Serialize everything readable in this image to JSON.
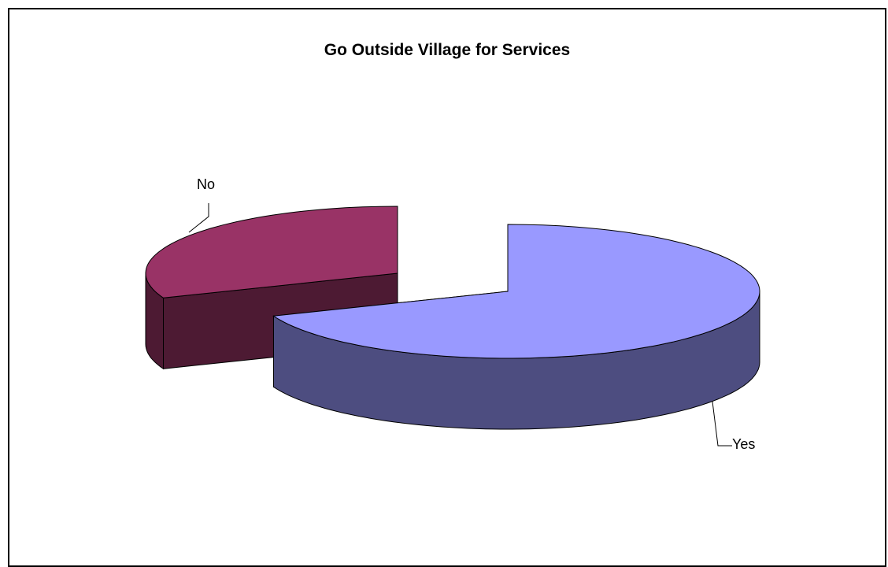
{
  "chart_data": {
    "type": "pie",
    "title": "Go Outside Village for Services",
    "categories": [
      "No",
      "Yes"
    ],
    "values": [
      31,
      69
    ],
    "colors": {
      "No": {
        "top": "#993366",
        "side": "#4d1a33"
      },
      "Yes": {
        "top": "#9999ff",
        "side": "#4d4d80"
      }
    },
    "three_d": true,
    "exploded": true,
    "legend": "none",
    "data_labels": "category names with leader lines"
  }
}
